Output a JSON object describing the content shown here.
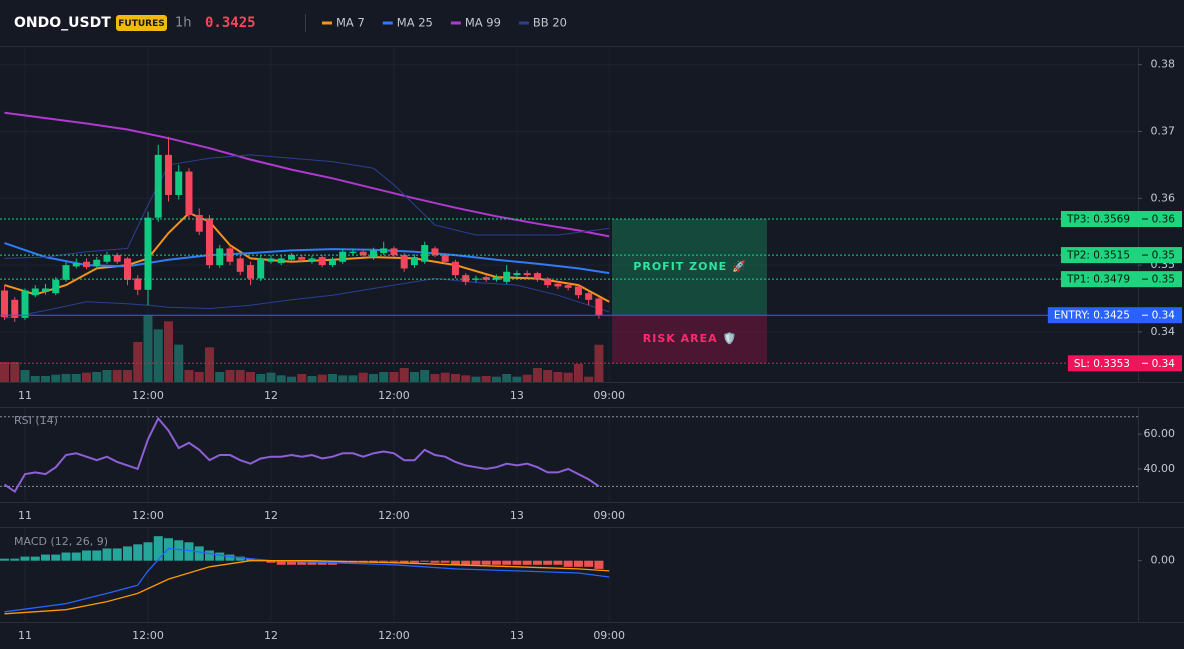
{
  "header": {
    "symbol": "ONDO_USDT",
    "badge": "FUTURES",
    "interval": "1h",
    "price": 0.3425
  },
  "chart_data": [
    {
      "type": "candlestick",
      "x": [
        -2,
        -1,
        0,
        1,
        2,
        3,
        4,
        5,
        6,
        7,
        8,
        9,
        10,
        11,
        12,
        13,
        14,
        15,
        16,
        17,
        18,
        19,
        20,
        21,
        22,
        23,
        24,
        25,
        26,
        27,
        28,
        29,
        30,
        31,
        32,
        33,
        34,
        35,
        36,
        37,
        38,
        39,
        40,
        41,
        42,
        43,
        44,
        45,
        46,
        47,
        48,
        49,
        50,
        51,
        52,
        53,
        54,
        55,
        56
      ],
      "open": [
        0.3462,
        0.3448,
        0.3421,
        0.3455,
        0.346,
        0.3458,
        0.3478,
        0.3498,
        0.3505,
        0.3498,
        0.3505,
        0.3515,
        0.351,
        0.348,
        0.3463,
        0.3571,
        0.3665,
        0.3605,
        0.364,
        0.3575,
        0.357,
        0.35,
        0.3525,
        0.351,
        0.35,
        0.348,
        0.3505,
        0.3503,
        0.3508,
        0.3512,
        0.3505,
        0.3512,
        0.35,
        0.3505,
        0.3518,
        0.352,
        0.3512,
        0.3518,
        0.3525,
        0.3515,
        0.35,
        0.3505,
        0.3525,
        0.3515,
        0.3505,
        0.3485,
        0.3478,
        0.3482,
        0.3478,
        0.3475,
        0.3485,
        0.3488,
        0.3488,
        0.348,
        0.3472,
        0.347,
        0.3468,
        0.3458,
        0.345
      ],
      "high": [
        0.347,
        0.3452,
        0.3465,
        0.347,
        0.3472,
        0.3482,
        0.3505,
        0.351,
        0.351,
        0.3512,
        0.352,
        0.3518,
        0.3512,
        0.3485,
        0.358,
        0.368,
        0.3692,
        0.365,
        0.3645,
        0.3585,
        0.3575,
        0.353,
        0.353,
        0.3515,
        0.3505,
        0.3515,
        0.3515,
        0.3514,
        0.3518,
        0.3515,
        0.3514,
        0.3515,
        0.3512,
        0.3524,
        0.3525,
        0.3524,
        0.3526,
        0.3535,
        0.3528,
        0.3518,
        0.3516,
        0.3535,
        0.3528,
        0.3518,
        0.3508,
        0.3488,
        0.3484,
        0.3485,
        0.3486,
        0.35,
        0.3492,
        0.3492,
        0.349,
        0.3482,
        0.3475,
        0.3473,
        0.347,
        0.346,
        0.3452
      ],
      "low": [
        0.3418,
        0.3415,
        0.3418,
        0.3452,
        0.3456,
        0.3455,
        0.3475,
        0.3495,
        0.3494,
        0.3495,
        0.3502,
        0.3502,
        0.347,
        0.3455,
        0.344,
        0.3565,
        0.3595,
        0.3598,
        0.357,
        0.3545,
        0.3495,
        0.3496,
        0.35,
        0.3485,
        0.347,
        0.3476,
        0.3502,
        0.35,
        0.3505,
        0.3505,
        0.3502,
        0.3497,
        0.3497,
        0.3502,
        0.3515,
        0.3512,
        0.3508,
        0.3515,
        0.3512,
        0.349,
        0.3496,
        0.3502,
        0.3512,
        0.3502,
        0.348,
        0.347,
        0.3474,
        0.3475,
        0.3475,
        0.3472,
        0.3482,
        0.3482,
        0.3475,
        0.3466,
        0.3464,
        0.3462,
        0.345,
        0.344,
        0.342
      ],
      "close": [
        0.3422,
        0.3421,
        0.3462,
        0.3465,
        0.3465,
        0.3478,
        0.35,
        0.3503,
        0.3497,
        0.3508,
        0.3515,
        0.3505,
        0.3478,
        0.3463,
        0.3571,
        0.3665,
        0.3605,
        0.364,
        0.3575,
        0.355,
        0.35,
        0.3525,
        0.3505,
        0.349,
        0.348,
        0.351,
        0.351,
        0.351,
        0.3515,
        0.3508,
        0.351,
        0.35,
        0.3508,
        0.352,
        0.352,
        0.3515,
        0.3522,
        0.3525,
        0.3515,
        0.3495,
        0.3512,
        0.353,
        0.3515,
        0.3505,
        0.3485,
        0.3475,
        0.348,
        0.3478,
        0.3482,
        0.349,
        0.3488,
        0.3485,
        0.3478,
        0.347,
        0.3468,
        0.3466,
        0.3455,
        0.3448,
        0.3425
      ],
      "up_color": "#0ecb81",
      "down_color": "#f6465d",
      "volume": {
        "values": [
          30,
          30,
          18,
          9,
          9,
          11,
          12,
          12,
          14,
          15,
          18,
          18,
          18,
          60,
          100,
          79,
          91,
          56,
          18,
          15,
          52,
          15,
          18,
          18,
          15,
          12,
          14,
          10,
          8,
          12,
          9,
          11,
          12,
          10,
          10,
          14,
          12,
          15,
          15,
          21,
          15,
          18,
          12,
          14,
          12,
          10,
          8,
          9,
          8,
          12,
          8,
          11,
          21,
          18,
          15,
          14,
          27,
          8,
          56
        ],
        "ylim": [
          0,
          150
        ],
        "up_color": "#1d615c",
        "down_color": "#7e2b37"
      },
      "xlim": [
        -2.44,
        108.6
      ],
      "xticks": [
        {
          "value": 0,
          "label": "11"
        },
        {
          "value": 12,
          "label": "12:00"
        },
        {
          "value": 24,
          "label": "12"
        },
        {
          "value": 36,
          "label": "12:00"
        },
        {
          "value": 48,
          "label": "13"
        },
        {
          "value": 57,
          "label": "09:00"
        }
      ],
      "ylim": [
        0.3325,
        0.3825
      ],
      "yticks": [
        0.38,
        0.37,
        0.36,
        0.35,
        0.34
      ],
      "grid": true,
      "series": [
        {
          "name": "MA 7",
          "color": "#f7931a",
          "x": [
            -2,
            1,
            4,
            7,
            10,
            12,
            14,
            16,
            18,
            20,
            22,
            26,
            30,
            34,
            38,
            42,
            46,
            50,
            54,
            57
          ],
          "values": [
            0.347,
            0.3456,
            0.347,
            0.3495,
            0.35,
            0.351,
            0.3548,
            0.3578,
            0.3565,
            0.353,
            0.351,
            0.3505,
            0.3508,
            0.3512,
            0.351,
            0.35,
            0.3482,
            0.348,
            0.347,
            0.3445
          ]
        },
        {
          "name": "MA 25",
          "color": "#2f7cf6",
          "x": [
            -2,
            2,
            6,
            10,
            14,
            18,
            22,
            26,
            30,
            34,
            38,
            42,
            46,
            50,
            54,
            57
          ],
          "values": [
            0.3533,
            0.3512,
            0.35,
            0.3498,
            0.3508,
            0.3515,
            0.3518,
            0.3522,
            0.3524,
            0.3523,
            0.352,
            0.3515,
            0.3508,
            0.3502,
            0.3495,
            0.3488
          ]
        },
        {
          "name": "MA 99",
          "color": "#b03ad0",
          "x": [
            -2,
            2,
            6,
            10,
            14,
            18,
            22,
            26,
            30,
            34,
            38,
            42,
            46,
            50,
            54,
            57
          ],
          "values": [
            0.3728,
            0.372,
            0.3712,
            0.3703,
            0.369,
            0.3675,
            0.3658,
            0.3643,
            0.363,
            0.3615,
            0.36,
            0.3586,
            0.3573,
            0.3562,
            0.3552,
            0.3543
          ]
        },
        {
          "name": "BB 20",
          "color": "#2c3f8f",
          "x": [
            -2,
            2,
            6,
            10,
            12,
            14,
            18,
            22,
            26,
            30,
            34,
            36,
            40,
            44,
            48,
            52,
            57
          ],
          "upper": [
            0.351,
            0.3512,
            0.352,
            0.3525,
            0.359,
            0.365,
            0.366,
            0.3665,
            0.366,
            0.3655,
            0.3645,
            0.362,
            0.356,
            0.3545,
            0.3545,
            0.3545,
            0.3555
          ],
          "lower": [
            0.342,
            0.3432,
            0.3445,
            0.3442,
            0.344,
            0.3437,
            0.3435,
            0.344,
            0.3448,
            0.3455,
            0.3465,
            0.347,
            0.348,
            0.3474,
            0.347,
            0.3455,
            0.343
          ]
        }
      ],
      "levels": [
        {
          "label": "TP3: 0.3569",
          "value": 0.3569,
          "axis_label": "0.36",
          "color": "#1fd47e",
          "text_color": "#0b1a12",
          "dash": true
        },
        {
          "label": "TP2: 0.3515",
          "value": 0.3515,
          "axis_label": "0.35",
          "color": "#1fd47e",
          "text_color": "#0b1a12",
          "dash": true
        },
        {
          "label": "TP1: 0.3479",
          "value": 0.3479,
          "axis_label": "0.35",
          "color": "#1fd47e",
          "text_color": "#0b1a12",
          "dash": true
        },
        {
          "label": "ENTRY: 0.3425",
          "value": 0.3425,
          "axis_label": "0.34",
          "color": "#2962ff",
          "text_color": "#ffffff",
          "dash": false
        },
        {
          "label": "SL: 0.3353",
          "value": 0.3353,
          "axis_label": "0.34",
          "color": "#f0145a",
          "text_color": "#ffffff",
          "dash": true
        }
      ],
      "zones": [
        {
          "label": "PROFIT ZONE 🚀",
          "from": 0.3425,
          "to": 0.3569,
          "color": "#15a36a",
          "text_color": "#2ee59d"
        },
        {
          "label": "RISK AREA 🛡️",
          "from": 0.3353,
          "to": 0.3425,
          "color": "#b3124a",
          "text_color": "#ff2a6d"
        }
      ]
    },
    {
      "type": "line",
      "title": "RSI (14)",
      "x": [
        -2,
        -1,
        0,
        1,
        2,
        3,
        4,
        5,
        6,
        7,
        8,
        9,
        10,
        11,
        12,
        13,
        14,
        15,
        16,
        17,
        18,
        19,
        20,
        21,
        22,
        23,
        24,
        25,
        26,
        27,
        28,
        29,
        30,
        31,
        32,
        33,
        34,
        35,
        36,
        37,
        38,
        39,
        40,
        41,
        42,
        43,
        44,
        45,
        46,
        47,
        48,
        49,
        50,
        51,
        52,
        53,
        54,
        55,
        56
      ],
      "series": [
        {
          "color": "#8e5fd6",
          "values": [
            31,
            27,
            37,
            38,
            37,
            41,
            48,
            49,
            47,
            45,
            47,
            44,
            42,
            40,
            57,
            69,
            62,
            52,
            55,
            51,
            45,
            48,
            48,
            45,
            43,
            46,
            47,
            47,
            48,
            47,
            48,
            46,
            47,
            49,
            49,
            47,
            49,
            50,
            49,
            45,
            45,
            51,
            48,
            47,
            44,
            42,
            41,
            40,
            41,
            43,
            42,
            43,
            41,
            38,
            38,
            40,
            37,
            34,
            30
          ]
        }
      ],
      "levels": [
        70,
        30
      ],
      "xlim": [
        -2.44,
        108.6
      ],
      "xticks": [
        {
          "value": 0,
          "label": "11"
        },
        {
          "value": 12,
          "label": "12:00"
        },
        {
          "value": 24,
          "label": "12"
        },
        {
          "value": 36,
          "label": "12:00"
        },
        {
          "value": 48,
          "label": "13"
        },
        {
          "value": 57,
          "label": "09:00"
        }
      ],
      "ylim": [
        21,
        75
      ],
      "yticks": [
        {
          "value": 60,
          "label": "60.00"
        },
        {
          "value": 40,
          "label": "40.00"
        }
      ]
    },
    {
      "type": "macd",
      "title": "MACD (12, 26, 9)",
      "x": [
        -2,
        -1,
        0,
        1,
        2,
        3,
        4,
        5,
        6,
        7,
        8,
        9,
        10,
        11,
        12,
        13,
        14,
        15,
        16,
        17,
        18,
        19,
        20,
        21,
        22,
        23,
        24,
        25,
        26,
        27,
        28,
        29,
        30,
        31,
        32,
        33,
        34,
        35,
        36,
        37,
        38,
        39,
        40,
        41,
        42,
        43,
        44,
        45,
        46,
        47,
        48,
        49,
        50,
        51,
        52,
        53,
        54,
        55,
        56
      ],
      "histogram": [
        0.0001,
        0.0001,
        0.0002,
        0.0002,
        0.0003,
        0.0003,
        0.0004,
        0.0004,
        0.0005,
        0.0005,
        0.0006,
        0.0006,
        0.0007,
        0.0008,
        0.0009,
        0.0012,
        0.0011,
        0.001,
        0.0009,
        0.0007,
        0.0005,
        0.0004,
        0.0003,
        0.0002,
        0.0001,
        5e-05,
        -0.0001,
        -0.0002,
        -0.0002,
        -0.0002,
        -0.0002,
        -0.0002,
        -0.0002,
        -0.0001,
        -0.0001,
        -0.0001,
        -0.0001,
        -5e-05,
        -5e-05,
        -0.0001,
        -0.0001,
        -5e-05,
        -0.0001,
        -0.0001,
        -0.0002,
        -0.0002,
        -0.0002,
        -0.0002,
        -0.0002,
        -0.0002,
        -0.0002,
        -0.0002,
        -0.0002,
        -0.0002,
        -0.0002,
        -0.0003,
        -0.0003,
        -0.0003,
        -0.0004
      ],
      "pos_color": "#26a69a",
      "neg_color": "#ef5350",
      "series": [
        {
          "color": "#2962ff",
          "x": [
            -2,
            4,
            8,
            11,
            12,
            14,
            16,
            20,
            24,
            30,
            36,
            42,
            48,
            54,
            57
          ],
          "values": [
            -0.0025,
            -0.0021,
            -0.0016,
            -0.0012,
            -0.0005,
            0.0006,
            0.0005,
            0.0002,
            0,
            -0.0001,
            -0.0002,
            -0.0004,
            -0.0005,
            -0.0006,
            -0.0008
          ]
        },
        {
          "color": "#ff9800",
          "x": [
            -2,
            4,
            8,
            11,
            14,
            18,
            22,
            28,
            36,
            42,
            48,
            54,
            57
          ],
          "values": [
            -0.0026,
            -0.0024,
            -0.002,
            -0.0016,
            -0.0009,
            -0.0003,
            0,
            0,
            -0.0001,
            -0.0002,
            -0.0003,
            -0.0004,
            -0.0005
          ]
        }
      ],
      "xlim": [
        -2.44,
        108.6
      ],
      "xticks": [
        {
          "value": 0,
          "label": "11"
        },
        {
          "value": 12,
          "label": "12:00"
        },
        {
          "value": 24,
          "label": "12"
        },
        {
          "value": 36,
          "label": "12:00"
        },
        {
          "value": 48,
          "label": "13"
        },
        {
          "value": 57,
          "label": "09:00"
        }
      ],
      "ylim": [
        -0.003,
        0.0016
      ],
      "yticks": [
        {
          "value": 0,
          "label": "0.00"
        }
      ]
    }
  ]
}
